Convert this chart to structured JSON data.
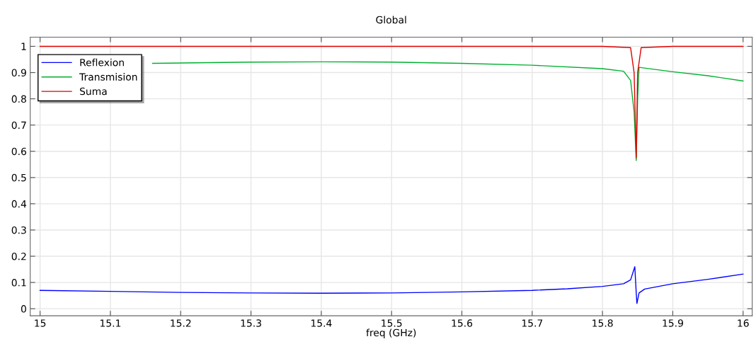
{
  "chart_data": {
    "type": "line",
    "title": "Global",
    "xlabel": "freq (GHz)",
    "xlim": [
      14.986,
      16.013
    ],
    "xticks": [
      15,
      15.1,
      15.2,
      15.3,
      15.4,
      15.5,
      15.6,
      15.7,
      15.8,
      15.9,
      16
    ],
    "ylim": [
      -0.027,
      1.035
    ],
    "yticks": [
      0,
      0.1,
      0.2,
      0.3,
      0.4,
      0.5,
      0.6,
      0.7,
      0.8,
      0.9,
      1
    ],
    "grid": true,
    "legend": "top left",
    "line_style": "solid",
    "series": [
      {
        "name": "Reflexion",
        "color": "#0000ff",
        "x": [
          15.0,
          15.1,
          15.2,
          15.3,
          15.4,
          15.5,
          15.6,
          15.7,
          15.75,
          15.8,
          15.83,
          15.84,
          15.846,
          15.848,
          15.849,
          15.852,
          15.86,
          15.9,
          15.95,
          16.0
        ],
        "values": [
          0.07,
          0.066,
          0.062,
          0.06,
          0.059,
          0.06,
          0.064,
          0.07,
          0.076,
          0.085,
          0.095,
          0.11,
          0.16,
          0.06,
          0.02,
          0.06,
          0.075,
          0.095,
          0.112,
          0.132
        ]
      },
      {
        "name": "Transmision",
        "color": "#00b030",
        "x": [
          15.16,
          15.3,
          15.4,
          15.5,
          15.6,
          15.7,
          15.8,
          15.83,
          15.84,
          15.845,
          15.848,
          15.85,
          15.852,
          15.9,
          15.95,
          16.0
        ],
        "values": [
          0.935,
          0.94,
          0.941,
          0.94,
          0.935,
          0.928,
          0.915,
          0.905,
          0.87,
          0.75,
          0.565,
          0.8,
          0.92,
          0.903,
          0.888,
          0.868
        ]
      },
      {
        "name": "Suma",
        "color": "#e00000",
        "x": [
          15.0,
          15.8,
          15.84,
          15.845,
          15.848,
          15.85,
          15.855,
          15.9,
          16.0
        ],
        "values": [
          1.0,
          1.0,
          0.995,
          0.9,
          0.575,
          0.9,
          0.995,
          1.0,
          1.0
        ]
      }
    ]
  }
}
